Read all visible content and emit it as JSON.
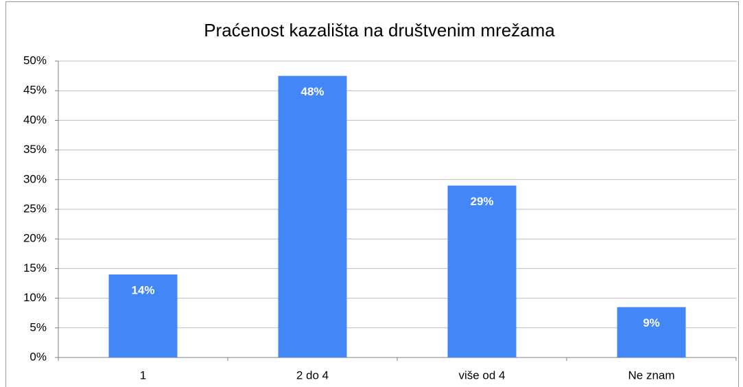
{
  "chart_data": {
    "type": "bar",
    "title": "Praćenost kazališta na društvenim mrežama",
    "categories": [
      "1",
      "2 do 4",
      "više od 4",
      "Ne znam"
    ],
    "values": [
      14,
      47.5,
      29,
      8.5
    ],
    "value_labels": [
      "14%",
      "48%",
      "29%",
      "9%"
    ],
    "color": "#4287f5",
    "ylim": [
      0,
      50
    ],
    "yticks": [
      {
        "value": 0,
        "label": "0%"
      },
      {
        "value": 5,
        "label": "5%"
      },
      {
        "value": 10,
        "label": "10%"
      },
      {
        "value": 15,
        "label": "15%"
      },
      {
        "value": 20,
        "label": "20%"
      },
      {
        "value": 25,
        "label": "25%"
      },
      {
        "value": 30,
        "label": "30%"
      },
      {
        "value": 35,
        "label": "35%"
      },
      {
        "value": 40,
        "label": "40%"
      },
      {
        "value": 45,
        "label": "45%"
      },
      {
        "value": 50,
        "label": "50%"
      }
    ],
    "grid": true
  }
}
